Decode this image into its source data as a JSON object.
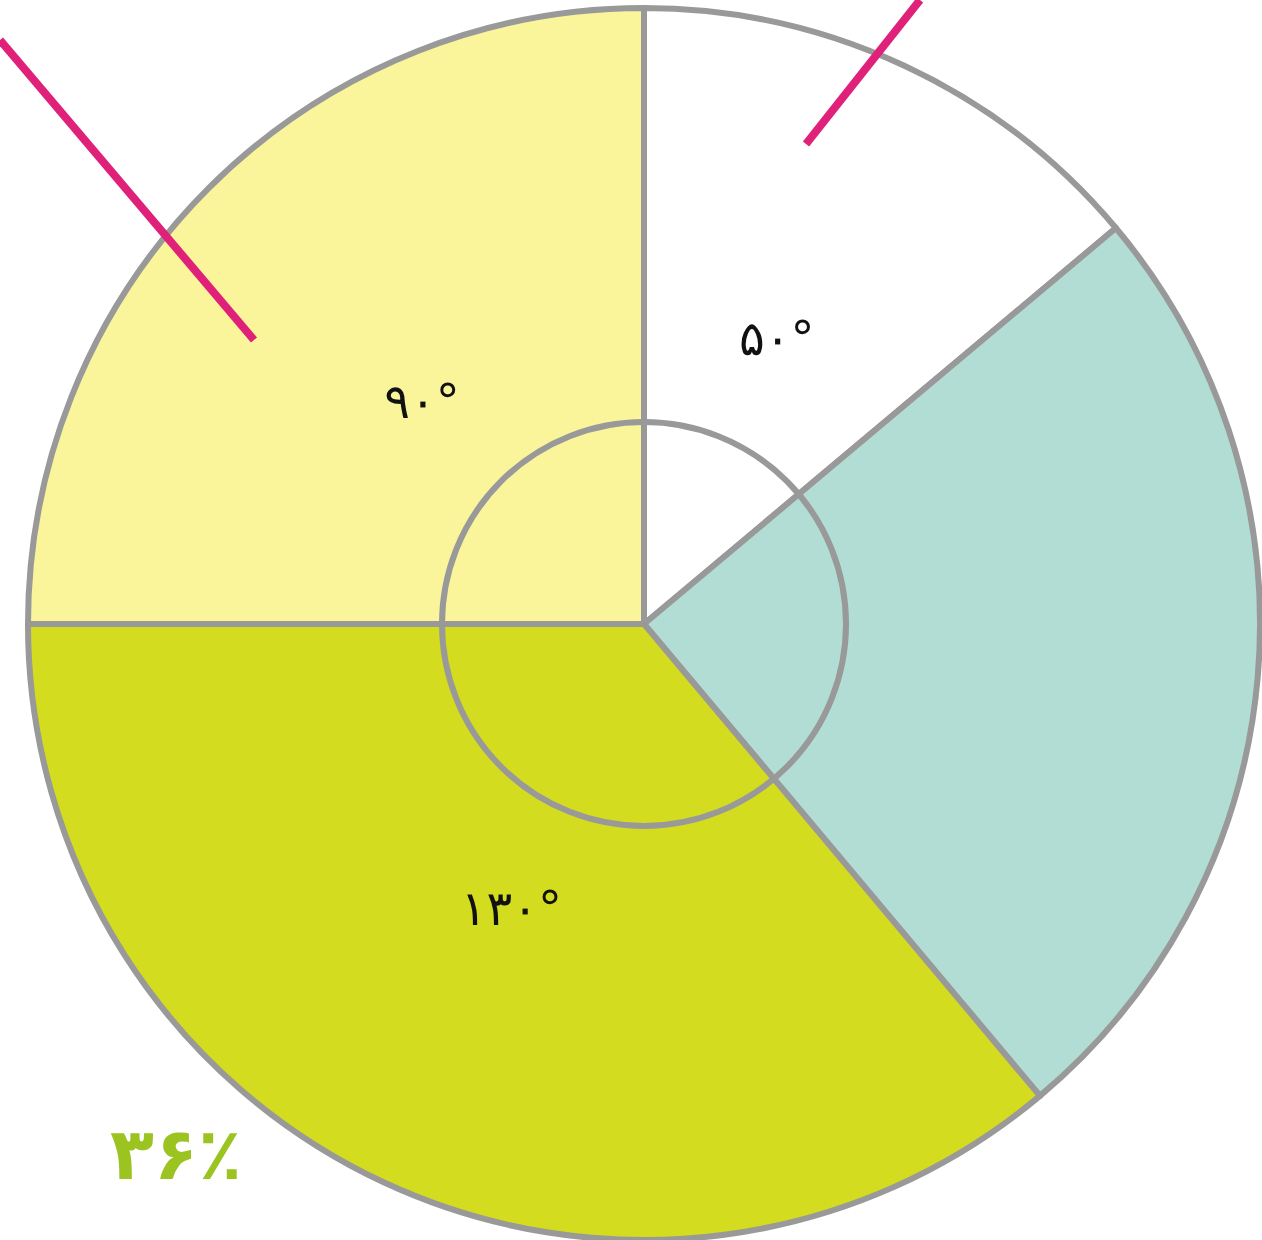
{
  "chart_data": {
    "type": "pie",
    "categories": [
      null,
      null,
      null,
      null
    ],
    "values": [
      50,
      90,
      130,
      90
    ],
    "colors": [
      "#ffffff",
      "#b2ddd5",
      "#d4dc1f",
      "#faf59a"
    ],
    "value_labels": [
      "۵۰°",
      null,
      "۱۳۰°",
      "۹۰°"
    ],
    "annotations": [
      "۳۶٪"
    ]
  }
}
